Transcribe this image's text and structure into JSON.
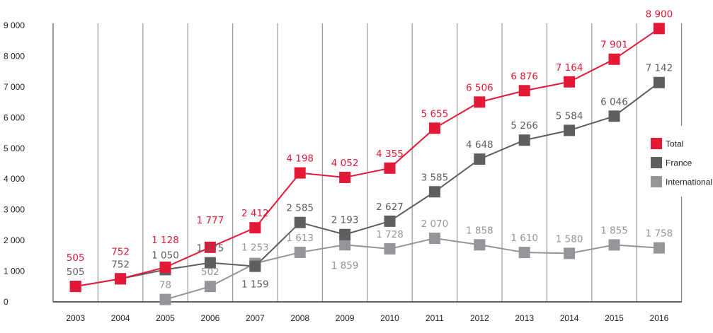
{
  "chart_data": {
    "type": "line",
    "title": "",
    "xlabel": "",
    "ylabel": "",
    "x": [
      "2003",
      "2004",
      "2005",
      "2006",
      "2007",
      "2008",
      "2009",
      "2010",
      "2011",
      "2012",
      "2013",
      "2014",
      "2015",
      "2016"
    ],
    "ylim": [
      0,
      9000
    ],
    "yticks": [
      0,
      1000,
      2000,
      3000,
      4000,
      5000,
      6000,
      7000,
      8000,
      9000
    ],
    "ytick_labels": [
      "0",
      "1 000",
      "2 000",
      "3 000",
      "4 000",
      "5 000",
      "6 000",
      "7 000",
      "8 000",
      "9 000"
    ],
    "grid": "vertical",
    "legend_position": "right",
    "series": [
      {
        "name": "Total",
        "color": "#e31937",
        "values": [
          505,
          752,
          1128,
          1777,
          2412,
          4198,
          4052,
          4355,
          5655,
          6506,
          6876,
          7164,
          7901,
          8900
        ],
        "labels": [
          "505",
          "752",
          "1 128",
          "1 777",
          "2 412",
          "4 198",
          "4 052",
          "4 355",
          "5 655",
          "6 506",
          "6 876",
          "7 164",
          "7 901",
          "8 900"
        ]
      },
      {
        "name": "France",
        "color": "#5e5e60",
        "values": [
          505,
          752,
          1050,
          1275,
          1159,
          2585,
          2193,
          2627,
          3585,
          4648,
          5266,
          5584,
          6046,
          7142
        ],
        "labels": [
          "505",
          "752",
          "1 050",
          "1 275",
          "1 159",
          "2 585",
          "2 193",
          "2 627",
          "3 585",
          "4 648",
          "5 266",
          "5 584",
          "6 046",
          "7 142"
        ]
      },
      {
        "name": "International",
        "color": "#939598",
        "values": [
          null,
          null,
          78,
          502,
          1253,
          1613,
          1859,
          1728,
          2070,
          1858,
          1610,
          1580,
          1855,
          1758
        ],
        "labels": [
          null,
          null,
          "78",
          "502",
          "1 253",
          "1 613",
          "1 859",
          "1 728",
          "2 070",
          "1 858",
          "1 610",
          "1 580",
          "1 855",
          "1 758"
        ]
      }
    ]
  }
}
